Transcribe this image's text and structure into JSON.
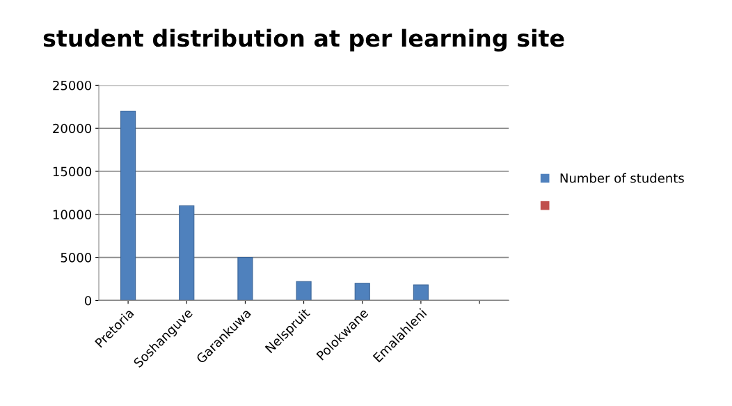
{
  "chart_data": {
    "type": "bar",
    "title": "student distribution at per learning site",
    "categories": [
      "Pretoria",
      "Soshanguve",
      "Garankuwa",
      "Nelspruit",
      "Polokwane",
      "Emalahleni",
      null
    ],
    "series": [
      {
        "name": "Number of students",
        "color": "#4f81bd",
        "values": [
          22000,
          11000,
          5000,
          2200,
          2000,
          1800,
          null
        ]
      },
      {
        "color": "#c0504d",
        "values": [
          null,
          null,
          null,
          null,
          null,
          null,
          null
        ]
      }
    ],
    "ylim": [
      0,
      25000
    ],
    "yticks": [
      0,
      5000,
      10000,
      15000,
      20000,
      25000
    ],
    "grid": "y",
    "legend": "right"
  }
}
